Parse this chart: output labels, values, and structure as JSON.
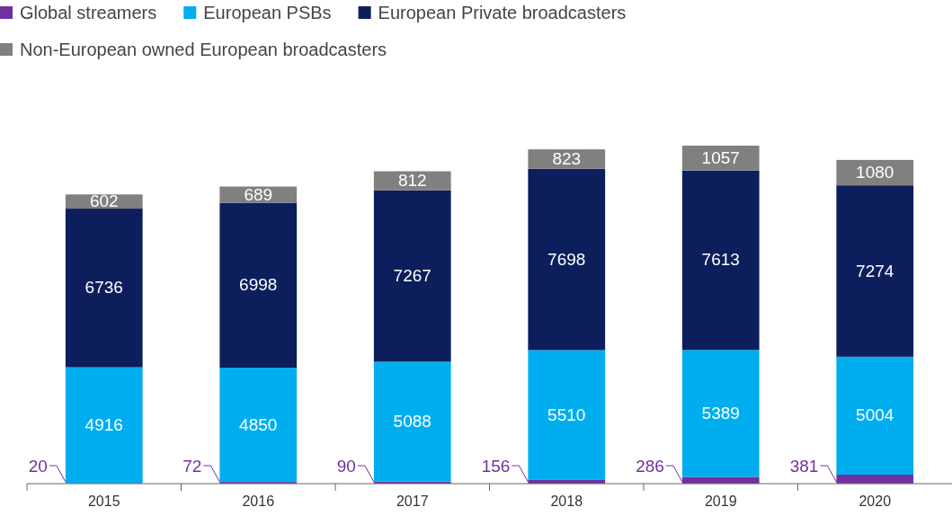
{
  "chart_data": {
    "type": "bar",
    "stacked": true,
    "data_labels": true,
    "legend": "top left",
    "categories": [
      "2015",
      "2016",
      "2017",
      "2018",
      "2019",
      "2020"
    ],
    "series": [
      {
        "name": "Global streamers",
        "color": "#7030a0",
        "values": [
          20,
          72,
          90,
          156,
          286,
          381
        ]
      },
      {
        "name": "European PSBs",
        "color": "#00aeef",
        "values": [
          4916,
          4850,
          5088,
          5510,
          5389,
          5004
        ]
      },
      {
        "name": "European Private broadcasters",
        "color": "#0c1f5c",
        "values": [
          6736,
          6998,
          7267,
          7698,
          7613,
          7274
        ]
      },
      {
        "name": "Non-European owned European broadcasters",
        "color": "#808080",
        "values": [
          602,
          689,
          812,
          823,
          1057,
          1080
        ]
      }
    ]
  }
}
